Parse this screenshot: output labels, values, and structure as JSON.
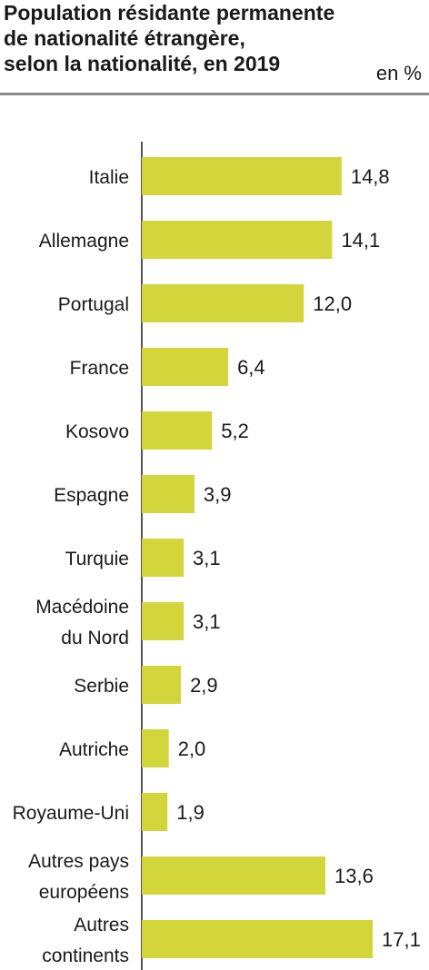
{
  "title_lines": [
    "Population résidante permanente",
    "de nationalité étrangère,",
    "selon la nationalité, en 2019"
  ],
  "unit": "en %",
  "colors": {
    "bar": "#d3d63a",
    "axis": "#1a1a1a",
    "rule": "#8a8a8a"
  },
  "chart_data": {
    "type": "bar",
    "orientation": "horizontal",
    "categories": [
      [
        "Italie"
      ],
      [
        "Allemagne"
      ],
      [
        "Portugal"
      ],
      [
        "France"
      ],
      [
        "Kosovo"
      ],
      [
        "Espagne"
      ],
      [
        "Turquie"
      ],
      [
        "Macédoine",
        "du Nord"
      ],
      [
        "Serbie"
      ],
      [
        "Autriche"
      ],
      [
        "Royaume-Uni"
      ],
      [
        "Autres pays",
        "européens"
      ],
      [
        "Autres",
        "continents"
      ]
    ],
    "values": [
      14.8,
      14.1,
      12.0,
      6.4,
      5.2,
      3.9,
      3.1,
      3.1,
      2.9,
      2.0,
      1.9,
      13.6,
      17.1
    ],
    "value_labels": [
      "14,8",
      "14,1",
      "12,0",
      "6,4",
      "5,2",
      "3,9",
      "3,1",
      "3,1",
      "2,9",
      "2,0",
      "1,9",
      "13,6",
      "17,1"
    ],
    "xlim": [
      0,
      17.1
    ],
    "grid": false,
    "legend": "none"
  }
}
